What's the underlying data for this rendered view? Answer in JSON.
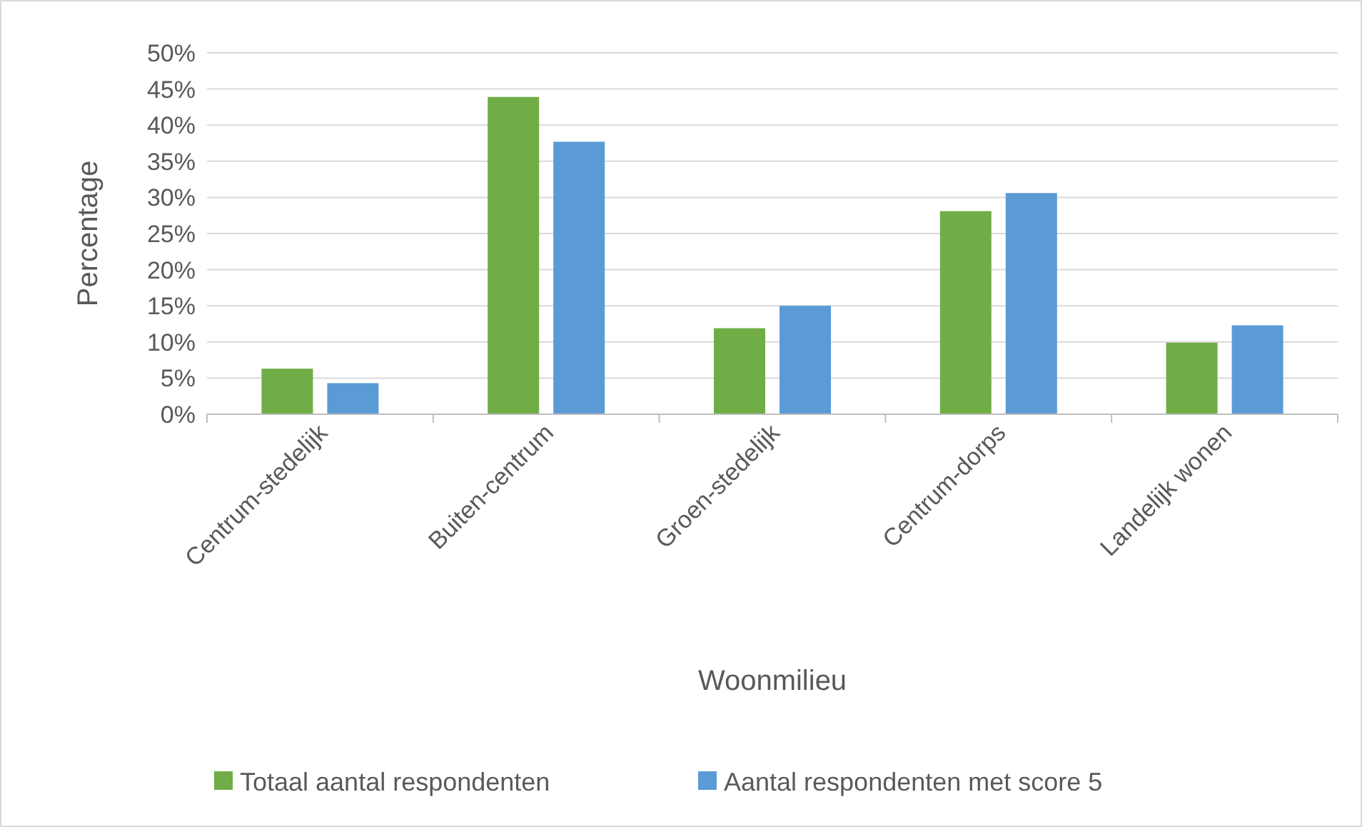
{
  "chart_data": {
    "type": "bar",
    "xlabel": "Woonmilieu",
    "ylabel": "Percentage",
    "categories": [
      "Centrum-stedelijk",
      "Buiten-centrum",
      "Groen-stedelijk",
      "Centrum-dorps",
      "Landelijk wonen"
    ],
    "series": [
      {
        "name": "Totaal aantal respondenten",
        "color": "#70ad47",
        "values": [
          6.3,
          43.9,
          11.9,
          28.1,
          9.9
        ]
      },
      {
        "name": "Aantal respondenten met score 5",
        "color": "#5b9bd5",
        "values": [
          4.3,
          37.7,
          15.0,
          30.6,
          12.3
        ]
      }
    ],
    "ylim": [
      0,
      50
    ],
    "yticks": [
      {
        "value": 0,
        "label": "0%"
      },
      {
        "value": 5,
        "label": "5%"
      },
      {
        "value": 10,
        "label": "10%"
      },
      {
        "value": 15,
        "label": "15%"
      },
      {
        "value": 20,
        "label": "20%"
      },
      {
        "value": 25,
        "label": "25%"
      },
      {
        "value": 30,
        "label": "30%"
      },
      {
        "value": 35,
        "label": "35%"
      },
      {
        "value": 40,
        "label": "40%"
      },
      {
        "value": 45,
        "label": "45%"
      },
      {
        "value": 50,
        "label": "50%"
      }
    ],
    "grid": "y",
    "legend": "bottom"
  }
}
